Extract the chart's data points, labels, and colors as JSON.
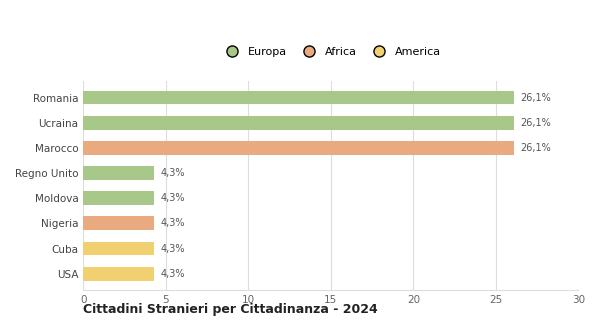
{
  "categories": [
    "USA",
    "Cuba",
    "Nigeria",
    "Moldova",
    "Regno Unito",
    "Marocco",
    "Ucraina",
    "Romania"
  ],
  "values": [
    4.3,
    4.3,
    4.3,
    4.3,
    4.3,
    26.1,
    26.1,
    26.1
  ],
  "colors": [
    "#f0d070",
    "#f0d070",
    "#e8aa7e",
    "#a8c88a",
    "#a8c88a",
    "#e8aa7e",
    "#a8c88a",
    "#a8c88a"
  ],
  "labels": [
    "4,3%",
    "4,3%",
    "4,3%",
    "4,3%",
    "4,3%",
    "26,1%",
    "26,1%",
    "26,1%"
  ],
  "legend": [
    {
      "label": "Europa",
      "color": "#a8c88a"
    },
    {
      "label": "Africa",
      "color": "#e8aa7e"
    },
    {
      "label": "America",
      "color": "#f0d070"
    }
  ],
  "xlim": [
    0,
    30
  ],
  "xticks": [
    0,
    5,
    10,
    15,
    20,
    25,
    30
  ],
  "title": "Cittadini Stranieri per Cittadinanza - 2024",
  "title_fontsize": 9,
  "subtitle_fontsize": 7,
  "label_fontsize": 7,
  "tick_fontsize": 7.5,
  "ytick_fontsize": 7.5,
  "background_color": "#ffffff",
  "grid_color": "#dddddd",
  "bar_height": 0.55
}
